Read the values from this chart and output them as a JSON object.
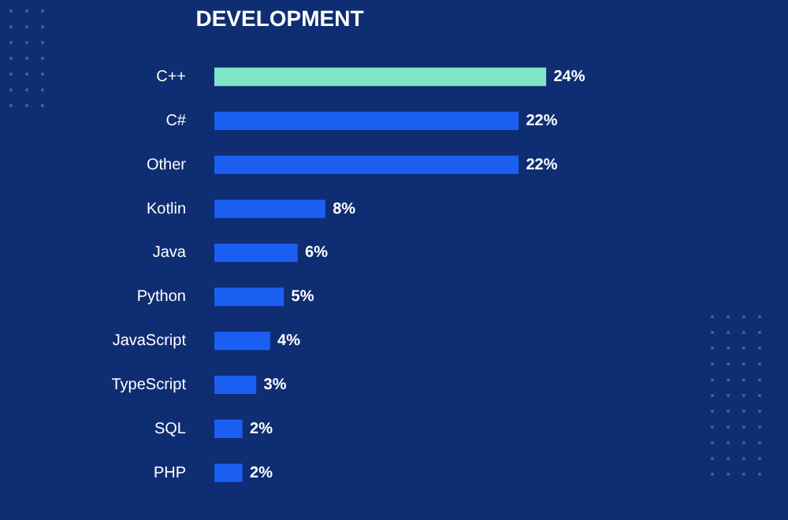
{
  "chart_data": {
    "type": "bar",
    "orientation": "horizontal",
    "title": "DEVELOPMENT",
    "categories": [
      "C++",
      "C#",
      "Other",
      "Kotlin",
      "Java",
      "Python",
      "JavaScript",
      "TypeScript",
      "SQL",
      "PHP"
    ],
    "values": [
      24,
      22,
      22,
      8,
      6,
      5,
      4,
      3,
      2,
      2
    ],
    "value_labels": [
      "24%",
      "22%",
      "22%",
      "8%",
      "6%",
      "5%",
      "4%",
      "3%",
      "2%",
      "2%"
    ],
    "colors": [
      "#7fe5c6",
      "#1b5ff2",
      "#1b5ff2",
      "#1b5ff2",
      "#1b5ff2",
      "#1b5ff2",
      "#1b5ff2",
      "#1b5ff2",
      "#1b5ff2",
      "#1b5ff2"
    ],
    "tick_labels": "y",
    "grid": false,
    "legend": false
  }
}
